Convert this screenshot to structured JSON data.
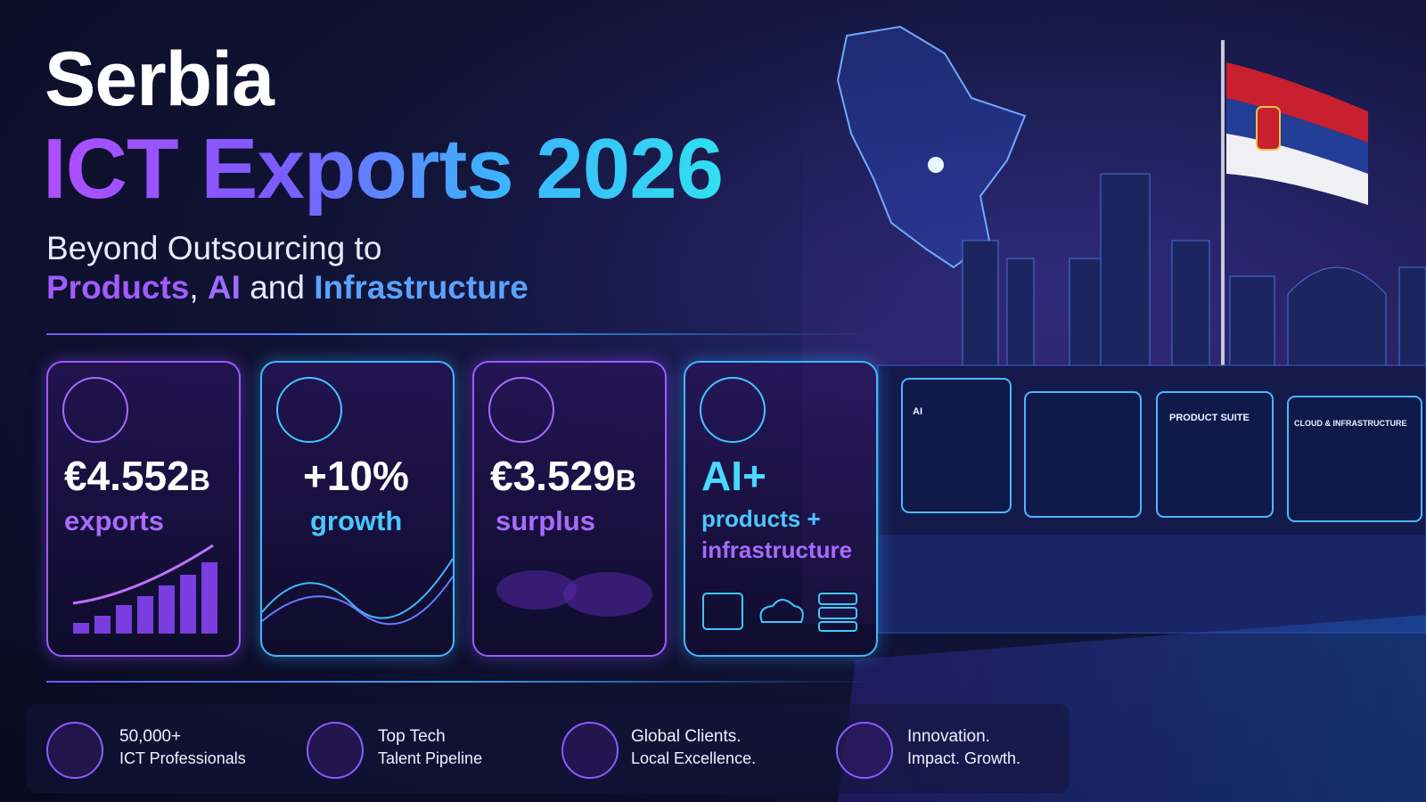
{
  "header": {
    "title": "Serbia",
    "headline": "ICT Exports 2026",
    "subtitle_line1": "Beyond Outsourcing to",
    "subtitle_line2": [
      "Products",
      ", ",
      "AI",
      " and ",
      "Infrastructure"
    ]
  },
  "cards": [
    {
      "value": "€4.552",
      "unit": "B",
      "label": "exports"
    },
    {
      "value": "+10%",
      "label": "growth"
    },
    {
      "value": "€3.529",
      "unit": "B",
      "label": "surplus"
    },
    {
      "value": "AI+",
      "label": "products +",
      "label2": "infrastructure"
    }
  ],
  "panels": [
    "AI",
    "PRODUCT SUITE",
    "CLOUD & INFRASTRUCTURE"
  ],
  "footer": [
    {
      "line1": "50,000+",
      "line2": "ICT Professionals"
    },
    {
      "line1": "Top Tech",
      "line2": "Talent Pipeline"
    },
    {
      "line1": "Global Clients.",
      "line2": "Local Excellence."
    },
    {
      "line1": "Innovation.",
      "line2": "Impact. Growth."
    }
  ]
}
